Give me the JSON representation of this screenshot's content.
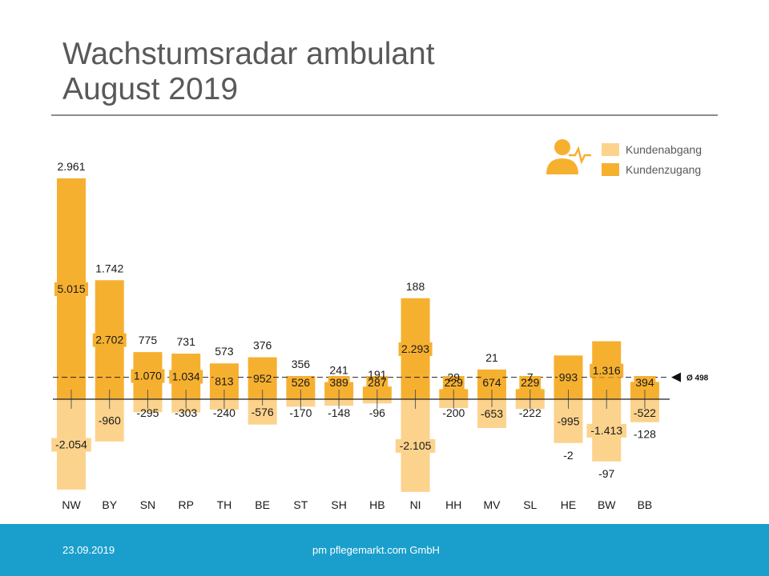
{
  "header": {
    "title_line1": "Wachstumsradar ambulant",
    "title_line2": "August 2019"
  },
  "legend": {
    "items": [
      {
        "label": "Kundenabgang",
        "color": "#fcd38d"
      },
      {
        "label": "Kundenzugang",
        "color": "#f6b030"
      }
    ],
    "icon": "person-heartbeat-icon"
  },
  "average": {
    "label": "Ø 498",
    "value": 498
  },
  "footer": {
    "date": "23.09.2019",
    "company": "pm pflegemarkt.com GmbH"
  },
  "colors": {
    "zugang": "#f6b030",
    "abgang": "#fcd38d",
    "text": "#1a1a1a",
    "footer": "#1a9fcc"
  },
  "chart_data": {
    "type": "bar",
    "categories": [
      "NW",
      "BY",
      "SN",
      "RP",
      "TH",
      "BE",
      "ST",
      "SH",
      "HB",
      "NI",
      "HH",
      "MV",
      "SL",
      "HE",
      "BW",
      "BB"
    ],
    "series": [
      {
        "name": "Kundenzugang",
        "values": [
          5015,
          2702,
          1070,
          1034,
          813,
          952,
          526,
          389,
          287,
          2293,
          229,
          674,
          229,
          993,
          1316,
          394
        ],
        "labels": [
          "5.015",
          "2.702",
          "1.070",
          "1.034",
          "813",
          "952",
          "526",
          "389",
          "287",
          "2.293",
          "229",
          "674",
          "229",
          "993",
          "1.316",
          "394"
        ]
      },
      {
        "name": "Kundenabgang",
        "values": [
          -2054,
          -960,
          -295,
          -303,
          -240,
          -576,
          -170,
          -148,
          -96,
          -2105,
          -200,
          -653,
          -222,
          -995,
          -1413,
          -522
        ],
        "labels": [
          "-2.054",
          "-960",
          "-295",
          "-303",
          "-240",
          "-576",
          "-170",
          "-148",
          "-96",
          "-2.105",
          "-200",
          "-653",
          "-222",
          "-995",
          "-1.413",
          "-522"
        ]
      }
    ],
    "net_values": [
      2961,
      1742,
      775,
      731,
      573,
      376,
      356,
      241,
      191,
      188,
      29,
      21,
      7,
      -2,
      -97,
      -128
    ],
    "net_labels": [
      "2.961",
      "1.742",
      "775",
      "731",
      "573",
      "376",
      "356",
      "241",
      "191",
      "188",
      "29",
      "21",
      "7",
      "-2",
      "-97",
      "-128"
    ],
    "reference_line": 498,
    "legend_position": "top-right",
    "grid": false
  }
}
